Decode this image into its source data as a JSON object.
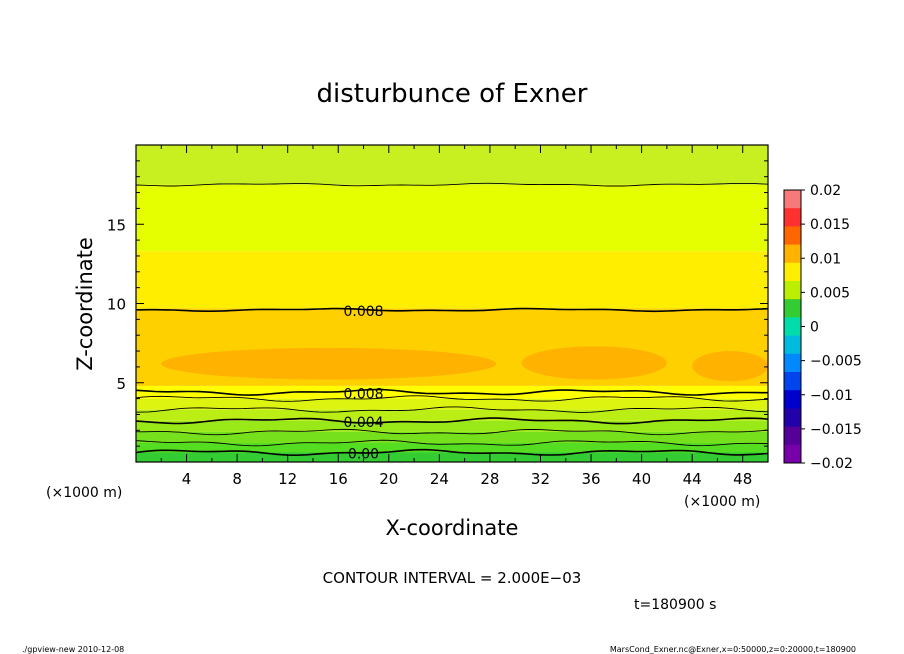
{
  "chart_data": {
    "type": "heatmap",
    "title": "disturbunce of Exner",
    "xlabel": "X-coordinate",
    "ylabel": "Z-coordinate",
    "x_unit_left": "(×1000 m)",
    "x_unit_right": "(×1000 m)",
    "xlim": [
      0,
      50
    ],
    "ylim": [
      0,
      20
    ],
    "x_ticks": [
      4,
      8,
      12,
      16,
      20,
      24,
      28,
      32,
      36,
      40,
      44,
      48
    ],
    "y_ticks": [
      5,
      10,
      15
    ],
    "bands": [
      {
        "z0": 0.0,
        "z1": 0.6,
        "color": "#33cc33"
      },
      {
        "z0": 0.6,
        "z1": 1.2,
        "color": "#55dd22"
      },
      {
        "z0": 1.2,
        "z1": 1.9,
        "color": "#77e01c"
      },
      {
        "z0": 1.9,
        "z1": 2.6,
        "color": "#99e818"
      },
      {
        "z0": 2.6,
        "z1": 3.3,
        "color": "#bbee14"
      },
      {
        "z0": 3.3,
        "z1": 4.0,
        "color": "#ddf410"
      },
      {
        "z0": 4.0,
        "z1": 4.8,
        "color": "#ffff00"
      },
      {
        "z0": 4.8,
        "z1": 9.7,
        "color": "#ffd000"
      },
      {
        "z0": 9.7,
        "z1": 13.3,
        "color": "#ffee00"
      },
      {
        "z0": 13.3,
        "z1": 17.5,
        "color": "#e6ff00"
      },
      {
        "z0": 17.5,
        "z1": 20.0,
        "color": "#c8f020"
      }
    ],
    "core_regions": [
      {
        "x0": 2.0,
        "x1": 28.5,
        "z0": 5.2,
        "z1": 7.2,
        "color": "#ffb300"
      },
      {
        "x0": 30.5,
        "x1": 42.0,
        "z0": 5.2,
        "z1": 7.3,
        "color": "#ffb300"
      },
      {
        "x0": 44.0,
        "x1": 50.0,
        "z0": 5.1,
        "z1": 7.0,
        "color": "#ffb300"
      }
    ],
    "contours": [
      {
        "level": "0.00",
        "z": 0.6,
        "bold": true,
        "label_x": 18
      },
      {
        "level": "",
        "z": 1.2,
        "bold": false,
        "label_x": null
      },
      {
        "level": "",
        "z": 1.9,
        "bold": false,
        "label_x": null
      },
      {
        "level": "0.004",
        "z": 2.6,
        "bold": true,
        "label_x": 18
      },
      {
        "level": "",
        "z": 3.3,
        "bold": false,
        "label_x": null
      },
      {
        "level": "",
        "z": 4.0,
        "bold": false,
        "label_x": null
      },
      {
        "level": "0.008",
        "z": 4.4,
        "bold": true,
        "label_x": 18
      },
      {
        "level": "0.008",
        "z": 9.6,
        "bold": true,
        "label_x": 18
      },
      {
        "level": "",
        "z": 17.5,
        "bold": false,
        "label_x": null
      }
    ],
    "colorbar": {
      "labels": [
        "0.02",
        "0.015",
        "0.01",
        "0.005",
        "0",
        "−0.005",
        "−0.01",
        "−0.015",
        "−0.02"
      ],
      "colors": [
        "#f77a7a",
        "#ff3030",
        "#ff6600",
        "#ffb300",
        "#ffee00",
        "#bbee00",
        "#33cc33",
        "#00ddaa",
        "#00bbdd",
        "#0088ff",
        "#0044ee",
        "#0000cc",
        "#2200aa",
        "#550099",
        "#7700aa"
      ]
    }
  },
  "contour_interval": "CONTOUR INTERVAL = 2.000E−03",
  "time_label": "t=180900 s",
  "footer_left": "./gpview-new  2010-12-08",
  "footer_right": "MarsCond_Exner.nc@Exner,x=0:50000,z=0:20000,t=180900"
}
